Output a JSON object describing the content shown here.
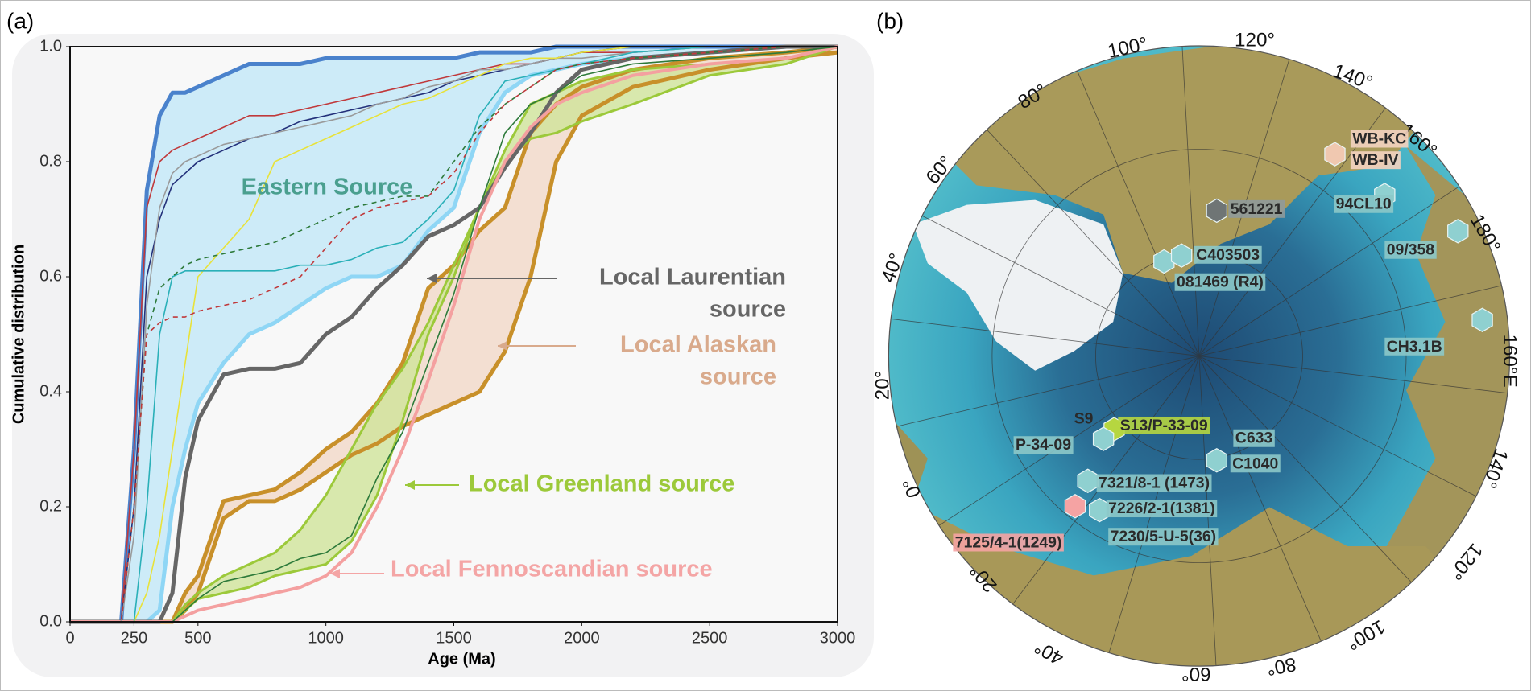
{
  "chart_data": {
    "type": "line",
    "panel_label": "(a)",
    "x_label": "Age (Ma)",
    "y_label": "Cumulative distribution",
    "xlim": [
      0,
      3000
    ],
    "ylim": [
      0,
      1
    ],
    "xticks": [
      0,
      250,
      500,
      1000,
      1500,
      2000,
      2500,
      3000
    ],
    "yticks": [
      {
        "value": 0,
        "label": "0.0"
      },
      {
        "value": 0.2,
        "label": "0.2"
      },
      {
        "value": 0.4,
        "label": "0.4"
      },
      {
        "value": 0.6,
        "label": "0.6"
      },
      {
        "value": 0.8,
        "label": "0.8"
      },
      {
        "value": 1,
        "label": "1.0"
      }
    ],
    "x": [
      0,
      200,
      250,
      300,
      350,
      400,
      450,
      500,
      600,
      700,
      800,
      900,
      1000,
      1100,
      1200,
      1300,
      1400,
      1500,
      1600,
      1700,
      1800,
      1900,
      2000,
      2200,
      2500,
      2800,
      3000
    ],
    "series": [
      {
        "color": "#4a82cc",
        "width": 5,
        "lower_color": "#8fd6f5",
        "fill": "#c2e7f8",
        "values": [
          0,
          0,
          0.3,
          0.75,
          0.88,
          0.92,
          0.92,
          0.93,
          0.95,
          0.97,
          0.97,
          0.97,
          0.98,
          0.98,
          0.98,
          0.98,
          0.98,
          0.98,
          0.99,
          0.99,
          0.99,
          1,
          1,
          1,
          1,
          1,
          1
        ],
        "lower": [
          0,
          0,
          0,
          0,
          0.02,
          0.2,
          0.3,
          0.38,
          0.45,
          0.5,
          0.52,
          0.55,
          0.58,
          0.6,
          0.6,
          0.62,
          0.68,
          0.72,
          0.85,
          0.92,
          0.95,
          0.96,
          0.97,
          0.98,
          0.99,
          1,
          1
        ]
      },
      {
        "color": "#c8902a",
        "width": 5,
        "lower_color": "#c8902a",
        "fill": "#f1d8c8",
        "values": [
          0,
          0,
          0,
          0,
          0,
          0,
          0.05,
          0.08,
          0.21,
          0.22,
          0.23,
          0.26,
          0.3,
          0.33,
          0.38,
          0.45,
          0.58,
          0.62,
          0.68,
          0.72,
          0.85,
          0.9,
          0.93,
          0.96,
          0.98,
          0.99,
          1
        ],
        "lower": [
          0,
          0,
          0,
          0,
          0,
          0,
          0.02,
          0.05,
          0.18,
          0.21,
          0.21,
          0.23,
          0.26,
          0.29,
          0.31,
          0.34,
          0.36,
          0.38,
          0.4,
          0.47,
          0.6,
          0.8,
          0.88,
          0.93,
          0.96,
          0.98,
          0.99
        ]
      },
      {
        "color": "#9cc93a",
        "width": 3,
        "lower_color": "#9cc93a",
        "fill": "#cfe49a",
        "values": [
          0,
          0,
          0,
          0,
          0,
          0,
          0.03,
          0.05,
          0.08,
          0.1,
          0.12,
          0.16,
          0.22,
          0.3,
          0.38,
          0.44,
          0.52,
          0.62,
          0.72,
          0.82,
          0.9,
          0.92,
          0.94,
          0.96,
          0.97,
          0.98,
          1
        ],
        "lower": [
          0,
          0,
          0,
          0,
          0,
          0,
          0.02,
          0.04,
          0.05,
          0.06,
          0.08,
          0.09,
          0.1,
          0.14,
          0.22,
          0.35,
          0.5,
          0.6,
          0.72,
          0.8,
          0.84,
          0.85,
          0.87,
          0.9,
          0.95,
          0.97,
          1
        ]
      },
      {
        "color": "#666666",
        "width": 5,
        "values": [
          0,
          0,
          0,
          0,
          0,
          0.05,
          0.25,
          0.35,
          0.43,
          0.44,
          0.44,
          0.45,
          0.5,
          0.53,
          0.58,
          0.62,
          0.67,
          0.69,
          0.72,
          0.79,
          0.85,
          0.92,
          0.96,
          0.98,
          0.99,
          1,
          1
        ]
      },
      {
        "color": "#f4a0a0",
        "width": 4,
        "values": [
          0,
          0,
          0,
          0,
          0,
          0,
          0.01,
          0.02,
          0.03,
          0.04,
          0.05,
          0.06,
          0.08,
          0.12,
          0.2,
          0.3,
          0.42,
          0.55,
          0.7,
          0.8,
          0.86,
          0.9,
          0.92,
          0.95,
          0.97,
          0.98,
          1
        ]
      },
      {
        "color": "#2d7a3a",
        "width": 1.6,
        "values": [
          0,
          0,
          0,
          0,
          0,
          0,
          0.02,
          0.04,
          0.07,
          0.08,
          0.09,
          0.11,
          0.12,
          0.15,
          0.25,
          0.33,
          0.45,
          0.57,
          0.72,
          0.85,
          0.9,
          0.92,
          0.95,
          0.97,
          0.98,
          0.99,
          1
        ]
      },
      {
        "color": "#c0393b",
        "width": 1.6,
        "values": [
          0,
          0,
          0.3,
          0.72,
          0.8,
          0.82,
          0.83,
          0.84,
          0.86,
          0.88,
          0.88,
          0.89,
          0.9,
          0.91,
          0.92,
          0.93,
          0.94,
          0.95,
          0.96,
          0.97,
          0.97,
          0.98,
          0.99,
          0.99,
          1,
          1,
          1
        ]
      },
      {
        "color": "#23307a",
        "width": 1.6,
        "values": [
          0,
          0,
          0.2,
          0.6,
          0.7,
          0.76,
          0.78,
          0.8,
          0.82,
          0.84,
          0.85,
          0.87,
          0.88,
          0.89,
          0.9,
          0.91,
          0.92,
          0.94,
          0.95,
          0.96,
          0.97,
          0.98,
          0.99,
          1,
          1,
          1,
          1
        ]
      },
      {
        "color": "#9a9a9a",
        "width": 1.6,
        "values": [
          0,
          0,
          0.15,
          0.55,
          0.72,
          0.78,
          0.8,
          0.81,
          0.83,
          0.84,
          0.85,
          0.86,
          0.87,
          0.88,
          0.9,
          0.91,
          0.93,
          0.94,
          0.96,
          0.96,
          0.97,
          0.98,
          0.98,
          0.99,
          1,
          1,
          1
        ]
      },
      {
        "color": "#e8e23a",
        "width": 1.6,
        "values": [
          0,
          0,
          0,
          0.05,
          0.15,
          0.3,
          0.45,
          0.6,
          0.65,
          0.7,
          0.8,
          0.82,
          0.84,
          0.86,
          0.88,
          0.9,
          0.91,
          0.93,
          0.95,
          0.97,
          0.98,
          0.98,
          0.99,
          1,
          1,
          1,
          1
        ]
      },
      {
        "color": "#2ab0b8",
        "width": 1.6,
        "values": [
          0,
          0,
          0,
          0.2,
          0.5,
          0.6,
          0.61,
          0.61,
          0.61,
          0.61,
          0.61,
          0.62,
          0.62,
          0.63,
          0.65,
          0.66,
          0.7,
          0.75,
          0.88,
          0.94,
          0.95,
          0.96,
          0.97,
          0.99,
          1,
          1,
          1
        ]
      },
      {
        "color": "#2d7a3a",
        "width": 1.6,
        "dash": true,
        "values": [
          0,
          0,
          0.2,
          0.5,
          0.58,
          0.6,
          0.62,
          0.63,
          0.64,
          0.65,
          0.66,
          0.68,
          0.7,
          0.72,
          0.73,
          0.74,
          0.74,
          0.8,
          0.86,
          0.9,
          0.93,
          0.96,
          0.97,
          0.98,
          0.99,
          1,
          1
        ]
      },
      {
        "color": "#c0393b",
        "width": 1.6,
        "dash": true,
        "values": [
          0,
          0,
          0.2,
          0.5,
          0.52,
          0.53,
          0.53,
          0.54,
          0.55,
          0.56,
          0.58,
          0.6,
          0.65,
          0.7,
          0.72,
          0.73,
          0.74,
          0.78,
          0.85,
          0.9,
          0.93,
          0.96,
          0.97,
          0.98,
          0.99,
          1,
          1
        ]
      }
    ],
    "annotations": [
      {
        "lines": [
          "Eastern Source"
        ],
        "color": "#4a9f8f"
      },
      {
        "lines": [
          "Local Laurentian",
          "source"
        ],
        "color": "#666666"
      },
      {
        "lines": [
          "Local Alaskan",
          "source"
        ],
        "color": "#d9aa8c"
      },
      {
        "lines": [
          "Local Greenland source"
        ],
        "color": "#9cc93a"
      },
      {
        "lines": [
          "Local Fennoscandian source"
        ],
        "color": "#f4a5a5"
      }
    ]
  },
  "panel_b": {
    "panel_label": "(b)",
    "degree_labels": [
      "100°",
      "120°",
      "140°",
      "160°",
      "180°",
      "160°E",
      "140°",
      "120°",
      "100°",
      "80°",
      "60°",
      "40°",
      "20°",
      "0°",
      "20°",
      "40°",
      "60°",
      "80°"
    ],
    "sites": [
      {
        "label": "WB-KC",
        "bg": "#f3d3c0"
      },
      {
        "label": "WB-IV",
        "bg": "#f3d3c0"
      },
      {
        "label": "561221",
        "bg": "#8f9a9a"
      },
      {
        "label": "94CL10",
        "bg": "#8cc8c8"
      },
      {
        "label": "09/358",
        "bg": "#8cc8c8"
      },
      {
        "label": "C403503",
        "bg": "#8cc8c8"
      },
      {
        "label": "081469 (R4)",
        "bg": "#8cc8c8"
      },
      {
        "label": "CH3.1B",
        "bg": "#8cc8c8"
      },
      {
        "label": "S9"
      },
      {
        "label": "S13/P-33-09",
        "bg": "#b6d640"
      },
      {
        "label": "P-34-09",
        "bg": "#8cc8c8"
      },
      {
        "label": "C633",
        "bg": "#8cc8c8"
      },
      {
        "label": "C1040",
        "bg": "#8cc8c8"
      },
      {
        "label": "7321/8-1 (1473)",
        "bg": "#8cc8c8"
      },
      {
        "label": "7226/2-1(1381)",
        "bg": "#8cc8c8"
      },
      {
        "label": "7125/4-1(1249)",
        "bg": "#f5a3a3"
      },
      {
        "label": "7230/5-U-5(36)",
        "bg": "#8cc8c8"
      }
    ],
    "markers": [
      {
        "color": "#f0c8b0"
      },
      {
        "color": "#6f7575"
      },
      {
        "color": "#8fd0d0"
      },
      {
        "color": "#8fd0d0"
      },
      {
        "color": "#8fd0d0"
      },
      {
        "color": "#8fd0d0"
      },
      {
        "color": "#8fd0d0"
      },
      {
        "color": "#b6d640"
      },
      {
        "color": "#8fd0d0"
      },
      {
        "color": "#8fd0d0"
      },
      {
        "color": "#8fd0d0"
      },
      {
        "color": "#8fd0d0"
      },
      {
        "color": "#f5a3a3"
      }
    ]
  }
}
